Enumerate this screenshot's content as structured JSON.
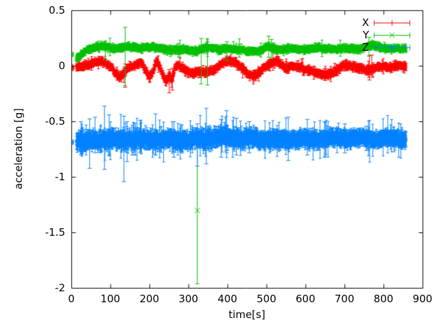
{
  "chart_data": {
    "type": "scatter",
    "style": "points-with-yerrorbars",
    "title": "",
    "xlabel": "time[s]",
    "ylabel": "acceleration [g]",
    "xlim": [
      0,
      900
    ],
    "ylim": [
      -2,
      0.5
    ],
    "grid": false,
    "background": "#ffffff",
    "border_color": "#000000",
    "text_color": "#000000",
    "x_ticks": {
      "values": [
        0,
        100,
        200,
        300,
        400,
        500,
        600,
        700,
        800,
        900
      ],
      "labels": [
        "0",
        "100",
        "200",
        "300",
        "400",
        "500",
        "600",
        "700",
        "800",
        "900"
      ]
    },
    "y_ticks": {
      "values": [
        0.5,
        0,
        -0.5,
        -1,
        -1.5,
        -2
      ],
      "labels": [
        "0.5",
        "0",
        "-0.5",
        "-1",
        "-1.5",
        "-2"
      ]
    },
    "legend": {
      "position": "top-right-inside",
      "entries": [
        "X",
        "Y",
        "Z"
      ]
    },
    "sampling": {
      "dt": 0.5,
      "t_start": 12,
      "t_end": 857,
      "seed": 1337
    },
    "series": [
      {
        "name": "X",
        "color": "#ff0000",
        "marker": "plus",
        "mean_keypoints": [
          [
            12,
            -0.015
          ],
          [
            25,
            0.0
          ],
          [
            45,
            0.02
          ],
          [
            65,
            0.035
          ],
          [
            82,
            0.03
          ],
          [
            95,
            0.01
          ],
          [
            105,
            -0.02
          ],
          [
            115,
            -0.06
          ],
          [
            123,
            -0.095
          ],
          [
            132,
            -0.075
          ],
          [
            140,
            -0.03
          ],
          [
            150,
            0.0
          ],
          [
            160,
            0.01
          ],
          [
            170,
            0.03
          ],
          [
            178,
            0.04
          ],
          [
            188,
            -0.02
          ],
          [
            200,
            -0.1
          ],
          [
            208,
            -0.05
          ],
          [
            218,
            0.045
          ],
          [
            228,
            -0.03
          ],
          [
            240,
            -0.13
          ],
          [
            250,
            -0.08
          ],
          [
            258,
            -0.115
          ],
          [
            265,
            -0.01
          ],
          [
            272,
            0.0
          ],
          [
            282,
            -0.02
          ],
          [
            295,
            -0.05
          ],
          [
            310,
            -0.065
          ],
          [
            322,
            -0.04
          ],
          [
            335,
            -0.06
          ],
          [
            348,
            -0.055
          ],
          [
            362,
            -0.04
          ],
          [
            375,
            0.0
          ],
          [
            390,
            0.04
          ],
          [
            402,
            0.055
          ],
          [
            415,
            0.04
          ],
          [
            428,
            0.01
          ],
          [
            442,
            -0.03
          ],
          [
            455,
            -0.07
          ],
          [
            468,
            -0.09
          ],
          [
            480,
            -0.06
          ],
          [
            492,
            -0.02
          ],
          [
            505,
            0.01
          ],
          [
            518,
            0.04
          ],
          [
            528,
            0.05
          ],
          [
            540,
            0.0
          ],
          [
            552,
            -0.025
          ],
          [
            565,
            -0.01
          ],
          [
            578,
            -0.005
          ],
          [
            592,
            -0.015
          ],
          [
            608,
            -0.035
          ],
          [
            625,
            -0.06
          ],
          [
            642,
            -0.08
          ],
          [
            658,
            -0.065
          ],
          [
            672,
            -0.045
          ],
          [
            688,
            -0.015
          ],
          [
            702,
            0.01
          ],
          [
            718,
            0.0
          ],
          [
            732,
            -0.01
          ],
          [
            748,
            -0.02
          ],
          [
            762,
            -0.04
          ],
          [
            775,
            -0.03
          ],
          [
            788,
            -0.005
          ],
          [
            802,
            0.0
          ],
          [
            818,
            -0.01
          ],
          [
            835,
            -0.005
          ],
          [
            857,
            -0.01
          ]
        ],
        "noise": {
          "sigma": 0.013,
          "wander": 0.008
        },
        "errbar": {
          "base": 0.012,
          "rand": 0.018,
          "spike_prob": 0.02,
          "spike_mag": 0.06
        },
        "start_points": [
          {
            "t": 0.5,
            "v": -0.005
          },
          {
            "t": 2,
            "v": -0.02
          }
        ],
        "big_errorbars": [
          [
            137,
            -0.19,
            0.02
          ],
          [
            250,
            -0.24,
            -0.03
          ],
          [
            258,
            -0.215,
            -0.02
          ],
          [
            763,
            -0.125,
            0.095
          ],
          [
            769,
            -0.1,
            0.1
          ]
        ],
        "outliers": []
      },
      {
        "name": "Y",
        "color": "#00c000",
        "marker": "cross",
        "mean_keypoints": [
          [
            12,
            0.065
          ],
          [
            25,
            0.115
          ],
          [
            40,
            0.15
          ],
          [
            60,
            0.165
          ],
          [
            86,
            0.175
          ],
          [
            110,
            0.16
          ],
          [
            137,
            0.165
          ],
          [
            162,
            0.165
          ],
          [
            188,
            0.17
          ],
          [
            212,
            0.165
          ],
          [
            238,
            0.158
          ],
          [
            262,
            0.152
          ],
          [
            288,
            0.148
          ],
          [
            310,
            0.143
          ],
          [
            322,
            0.138
          ],
          [
            335,
            0.158
          ],
          [
            352,
            0.162
          ],
          [
            372,
            0.152
          ],
          [
            392,
            0.158
          ],
          [
            412,
            0.148
          ],
          [
            435,
            0.143
          ],
          [
            458,
            0.138
          ],
          [
            482,
            0.133
          ],
          [
            505,
            0.18
          ],
          [
            522,
            0.158
          ],
          [
            545,
            0.152
          ],
          [
            568,
            0.158
          ],
          [
            592,
            0.153
          ],
          [
            618,
            0.158
          ],
          [
            645,
            0.158
          ],
          [
            672,
            0.152
          ],
          [
            700,
            0.152
          ],
          [
            725,
            0.158
          ],
          [
            748,
            0.165
          ],
          [
            768,
            0.188
          ],
          [
            792,
            0.178
          ],
          [
            815,
            0.163
          ],
          [
            835,
            0.158
          ],
          [
            857,
            0.158
          ]
        ],
        "noise": {
          "sigma": 0.011,
          "wander": 0.008
        },
        "errbar": {
          "base": 0.012,
          "rand": 0.015,
          "spike_prob": 0.015,
          "spike_mag": 0.07
        },
        "start_points": [
          {
            "t": 0.5,
            "v": 0.105
          }
        ],
        "big_errorbars": [
          [
            86,
            0.06,
            0.225
          ],
          [
            137,
            -0.175,
            0.35
          ],
          [
            332,
            -0.16,
            0.25
          ],
          [
            348,
            -0.17,
            0.22
          ],
          [
            398,
            0.05,
            0.22
          ],
          [
            505,
            0.08,
            0.27
          ],
          [
            512,
            0.07,
            0.24
          ],
          [
            762,
            0.09,
            0.26
          ]
        ],
        "outliers": [
          {
            "t": 322,
            "v": -1.3,
            "lo": -1.96,
            "hi": -0.63
          }
        ]
      },
      {
        "name": "Z",
        "color": "#0080ff",
        "marker": "star",
        "mean_keypoints": [
          [
            12,
            -0.665
          ],
          [
            45,
            -0.668
          ],
          [
            80,
            -0.66
          ],
          [
            115,
            -0.668
          ],
          [
            150,
            -0.662
          ],
          [
            185,
            -0.665
          ],
          [
            220,
            -0.662
          ],
          [
            255,
            -0.66
          ],
          [
            290,
            -0.658
          ],
          [
            325,
            -0.655
          ],
          [
            360,
            -0.648
          ],
          [
            395,
            -0.642
          ],
          [
            430,
            -0.65
          ],
          [
            465,
            -0.655
          ],
          [
            500,
            -0.658
          ],
          [
            535,
            -0.655
          ],
          [
            570,
            -0.65
          ],
          [
            605,
            -0.658
          ],
          [
            640,
            -0.655
          ],
          [
            675,
            -0.65
          ],
          [
            710,
            -0.65
          ],
          [
            745,
            -0.653
          ],
          [
            780,
            -0.65
          ],
          [
            815,
            -0.649
          ],
          [
            857,
            -0.65
          ]
        ],
        "noise": {
          "sigma": 0.02,
          "wander": 0.012,
          "taper": 0.3
        },
        "errbar": {
          "base": 0.035,
          "rand": 0.05,
          "spike_prob": 0.05,
          "spike_mag": 0.12,
          "early_t": 450,
          "early_boost": 2
        },
        "start_points": [
          {
            "t": 0.5,
            "v": -0.685
          }
        ],
        "big_errorbars": [
          [
            24,
            -0.8,
            -0.5
          ],
          [
            46,
            -0.92,
            -0.475
          ],
          [
            60,
            -0.78,
            -0.46
          ],
          [
            84,
            -0.93,
            -0.36
          ],
          [
            96,
            -0.8,
            -0.44
          ],
          [
            134,
            -1.04,
            -0.45
          ],
          [
            142,
            -0.86,
            -0.5
          ],
          [
            176,
            -0.78,
            -0.49
          ],
          [
            215,
            -0.8,
            -0.43
          ],
          [
            262,
            -0.82,
            -0.5
          ],
          [
            322,
            -0.9,
            -0.52
          ],
          [
            345,
            -0.88,
            -0.38
          ],
          [
            383,
            -0.82,
            -0.48
          ],
          [
            397,
            -0.78,
            -0.4
          ],
          [
            422,
            -0.8,
            -0.47
          ],
          [
            455,
            -0.78,
            -0.5
          ],
          [
            555,
            -0.85,
            -0.46
          ],
          [
            604,
            -0.8,
            -0.48
          ],
          [
            648,
            -0.82,
            -0.5
          ],
          [
            700,
            -0.78,
            -0.52
          ],
          [
            755,
            -0.76,
            -0.54
          ]
        ],
        "outliers": []
      }
    ]
  }
}
